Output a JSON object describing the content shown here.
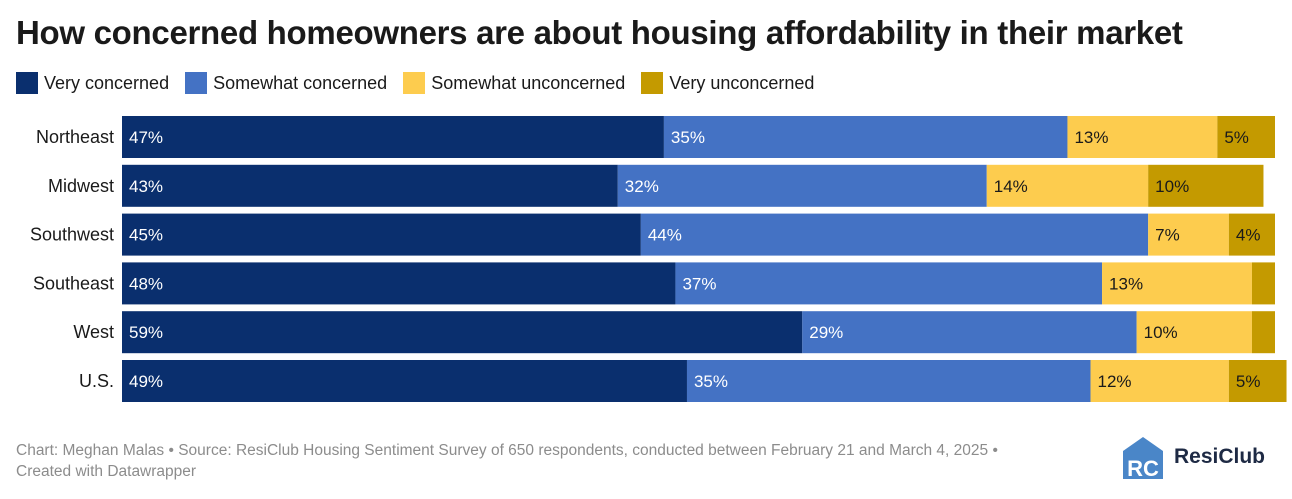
{
  "title": "How concerned homeowners are about housing affordability in their market",
  "legend": [
    {
      "label": "Very concerned",
      "color": "#0a2f6e"
    },
    {
      "label": "Somewhat concerned",
      "color": "#4472c4"
    },
    {
      "label": "Somewhat unconcerned",
      "color": "#fdcc4e"
    },
    {
      "label": "Very unconcerned",
      "color": "#c49a00"
    }
  ],
  "chart_data": {
    "type": "bar",
    "orientation": "horizontal",
    "stacked": true,
    "title": "How concerned homeowners are about housing affordability in their market",
    "categories": [
      "Northeast",
      "Midwest",
      "Southwest",
      "Southeast",
      "West",
      "U.S."
    ],
    "series": [
      {
        "name": "Very concerned",
        "color": "#0a2f6e",
        "values": [
          47,
          43,
          45,
          48,
          59,
          49
        ],
        "labels": [
          "47%",
          "43%",
          "45%",
          "48%",
          "59%",
          "49%"
        ]
      },
      {
        "name": "Somewhat concerned",
        "color": "#4472c4",
        "values": [
          35,
          32,
          44,
          37,
          29,
          35
        ],
        "labels": [
          "35%",
          "32%",
          "44%",
          "37%",
          "29%",
          "35%"
        ]
      },
      {
        "name": "Somewhat unconcerned",
        "color": "#fdcc4e",
        "values": [
          13,
          14,
          7,
          13,
          10,
          12
        ],
        "labels": [
          "13%",
          "14%",
          "7%",
          "13%",
          "10%",
          "12%"
        ]
      },
      {
        "name": "Very unconcerned",
        "color": "#c49a00",
        "values": [
          5,
          10,
          4,
          2,
          2,
          5
        ],
        "labels": [
          "5%",
          "10%",
          "4%",
          "",
          "",
          "5%"
        ]
      }
    ],
    "xlim": [
      0,
      100
    ]
  },
  "footer": {
    "line1": "Chart: Meghan Malas • Source: ResiClub Housing Sentiment Survey of 650 respondents, conducted between February 21 and March 4, 2025 •",
    "line2": "Created with Datawrapper"
  },
  "logo": {
    "mark": "RC",
    "text": "ResiClub",
    "color": "#1e2a44",
    "accent": "#4a86c8"
  }
}
